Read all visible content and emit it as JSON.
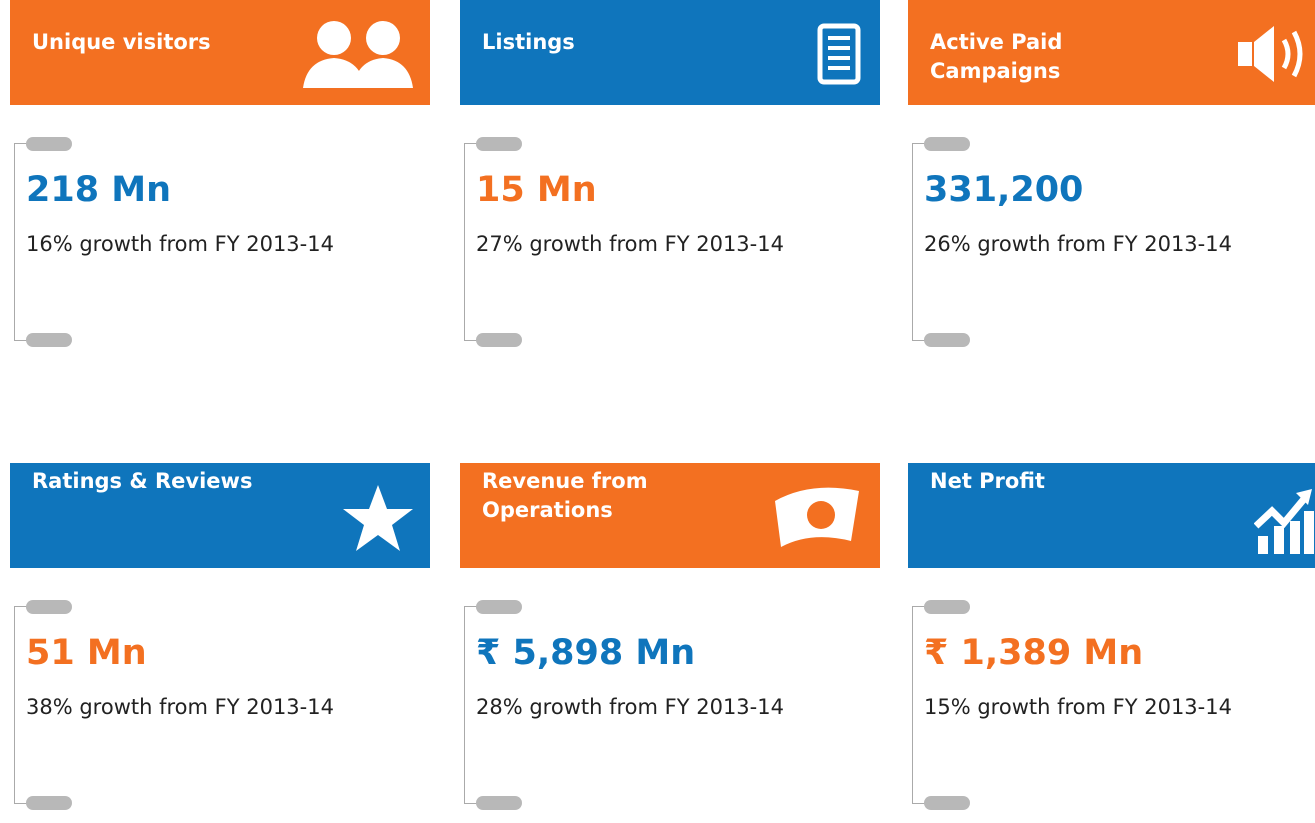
{
  "cards": [
    {
      "title": "Unique visitors",
      "value": "218 Mn",
      "growth": "16% growth from FY 2013-14"
    },
    {
      "title": "Listings",
      "value": "15 Mn",
      "growth": "27% growth from FY 2013-14"
    },
    {
      "title": "Active Paid Campaigns",
      "value": "331,200",
      "growth": "26% growth from FY 2013-14"
    },
    {
      "title": "Ratings & Reviews",
      "value": "51 Mn",
      "growth": "38% growth from FY 2013-14"
    },
    {
      "title": "Revenue from Operations",
      "value": "₹ 5,898 Mn",
      "growth": "28% growth from FY 2013-14"
    },
    {
      "title": "Net Profit",
      "value": "₹ 1,389 Mn",
      "growth": "15% growth from FY 2013-14"
    }
  ]
}
